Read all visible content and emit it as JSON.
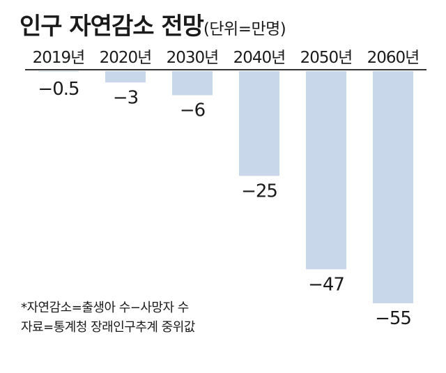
{
  "chart_data": {
    "type": "bar",
    "title": "인구 자연감소 전망",
    "unit_label": "(단위=만명)",
    "categories": [
      "2019년",
      "2020년",
      "2030년",
      "2040년",
      "2050년",
      "2060년"
    ],
    "values": [
      -0.5,
      -3,
      -6,
      -25,
      -47,
      -55
    ],
    "value_labels": [
      "−0.5",
      "−3",
      "−6",
      "−25",
      "−47",
      "−55"
    ],
    "ylim": [
      -55,
      0
    ],
    "bar_color": "#c8d8ea",
    "axis_color": "#333333"
  },
  "notes": {
    "definition": "*자연감소=출생아 수−사망자 수",
    "source": "자료=통계청 장래인구추계 중위값"
  }
}
